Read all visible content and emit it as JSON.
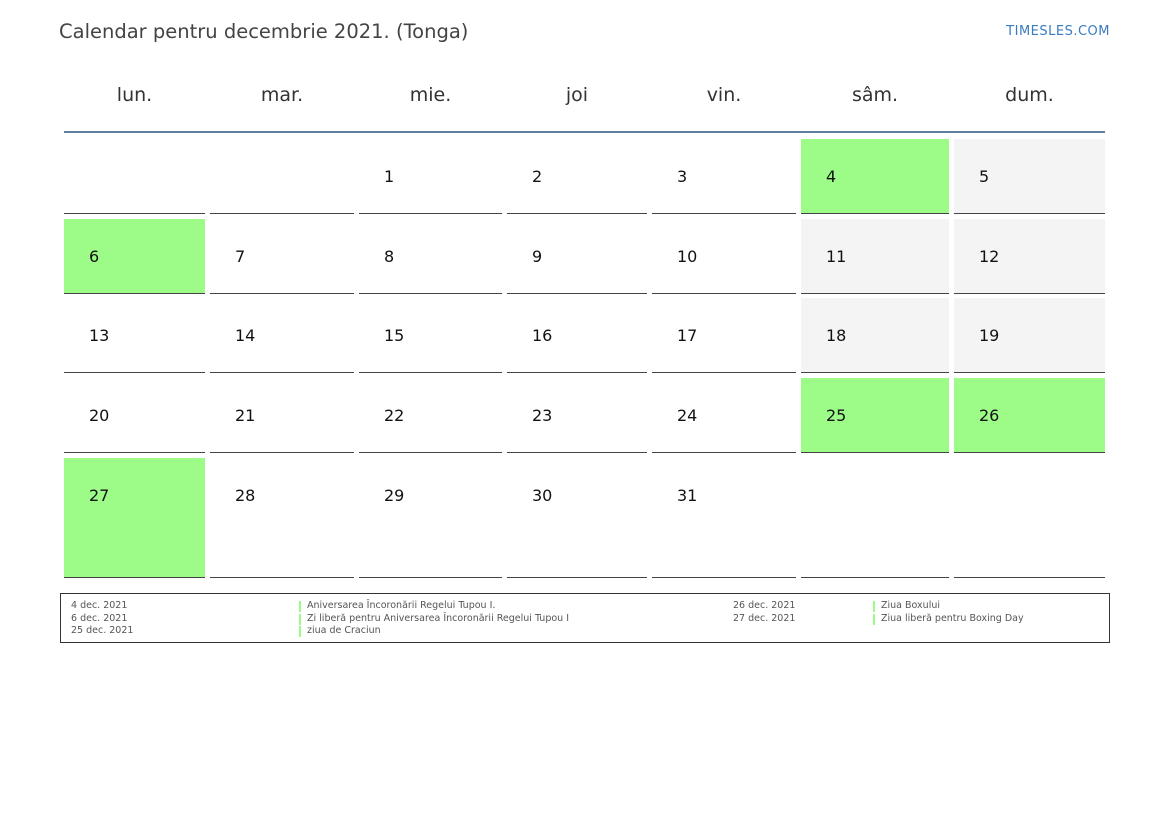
{
  "title": "Calendar pentru decembrie 2021. (Tonga)",
  "brand": "TIMESLES.COM",
  "day_names": [
    "lun.",
    "mar.",
    "mie.",
    "joi",
    "vin.",
    "sâm.",
    "dum."
  ],
  "weeks": [
    [
      "",
      "",
      "1",
      "2",
      "3",
      "4",
      "5"
    ],
    [
      "6",
      "7",
      "8",
      "9",
      "10",
      "11",
      "12"
    ],
    [
      "13",
      "14",
      "15",
      "16",
      "17",
      "18",
      "19"
    ],
    [
      "20",
      "21",
      "22",
      "23",
      "24",
      "25",
      "26"
    ],
    [
      "27",
      "28",
      "29",
      "30",
      "31",
      "",
      ""
    ]
  ],
  "holiday_days": [
    "4",
    "6",
    "25",
    "26",
    "27"
  ],
  "colors": {
    "holiday": "#9cfc87",
    "weekend": "#f4f4f4",
    "header_rule": "#5f7f9f",
    "brand": "#3a7bbf"
  },
  "legend": {
    "left_dates": [
      "4 dec. 2021",
      "6 dec. 2021",
      "25 dec. 2021"
    ],
    "left_names": [
      "Aniversarea Încoronării Regelui Tupou I.",
      "Zi liberă pentru Aniversarea Încoronării Regelui Tupou I",
      "ziua de Craciun"
    ],
    "right_dates": [
      "26 dec. 2021",
      "27 dec. 2021"
    ],
    "right_names": [
      "Ziua Boxului",
      "Ziua liberă pentru Boxing Day"
    ]
  }
}
